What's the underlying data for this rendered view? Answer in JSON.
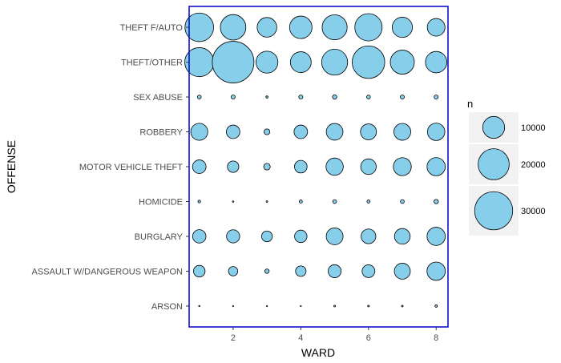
{
  "chart_data": {
    "type": "scatter",
    "subtype": "bubble",
    "xlabel": "WARD",
    "ylabel": "OFFENSE",
    "x_ticks": [
      2,
      4,
      6,
      8
    ],
    "xlim": [
      0.7,
      8.35
    ],
    "x_values": [
      1,
      2,
      3,
      4,
      5,
      6,
      7,
      8
    ],
    "categories": [
      "ARSON",
      "ASSAULT W/DANGEROUS WEAPON",
      "BURGLARY",
      "HOMICIDE",
      "MOTOR VEHICLE THEFT",
      "ROBBERY",
      "SEX ABUSE",
      "THEFT/OTHER",
      "THEFT F/AUTO"
    ],
    "size_by": "n",
    "series": [
      {
        "category": "THEFT F/AUTO",
        "values": [
          17000,
          13500,
          8000,
          10500,
          13000,
          15500,
          8500,
          6500
        ]
      },
      {
        "category": "THEFT/OTHER",
        "values": [
          17500,
          36000,
          10000,
          9000,
          14000,
          22000,
          12000,
          9500
        ]
      },
      {
        "category": "SEX ABUSE",
        "values": [
          300,
          350,
          100,
          350,
          400,
          300,
          350,
          350
        ]
      },
      {
        "category": "ROBBERY",
        "values": [
          6000,
          3800,
          700,
          3800,
          5800,
          5300,
          5900,
          6300
        ]
      },
      {
        "category": "MOTOR VEHICLE THEFT",
        "values": [
          3800,
          2700,
          900,
          3300,
          6200,
          5000,
          6700,
          6900
        ]
      },
      {
        "category": "HOMICIDE",
        "values": [
          150,
          40,
          50,
          200,
          300,
          200,
          300,
          400
        ]
      },
      {
        "category": "BURGLARY",
        "values": [
          3700,
          3600,
          2400,
          3200,
          5900,
          4500,
          5100,
          6900
        ]
      },
      {
        "category": "ASSAULT W/DANGEROUS WEAPON",
        "values": [
          2800,
          1800,
          400,
          2300,
          3500,
          3400,
          5300,
          7000
        ]
      },
      {
        "category": "ARSON",
        "values": [
          30,
          20,
          15,
          20,
          60,
          60,
          60,
          120
        ]
      }
    ],
    "legend": {
      "title": "n",
      "position": "right",
      "values": [
        10000,
        20000,
        30000
      ],
      "labels": [
        "10000",
        "20000",
        "30000"
      ]
    },
    "grid": false,
    "colors": {
      "fill": "#87CEEB",
      "stroke": "#000000",
      "panel_border": "#0000CC",
      "legend_key_bg": "#F2F2F2"
    }
  }
}
